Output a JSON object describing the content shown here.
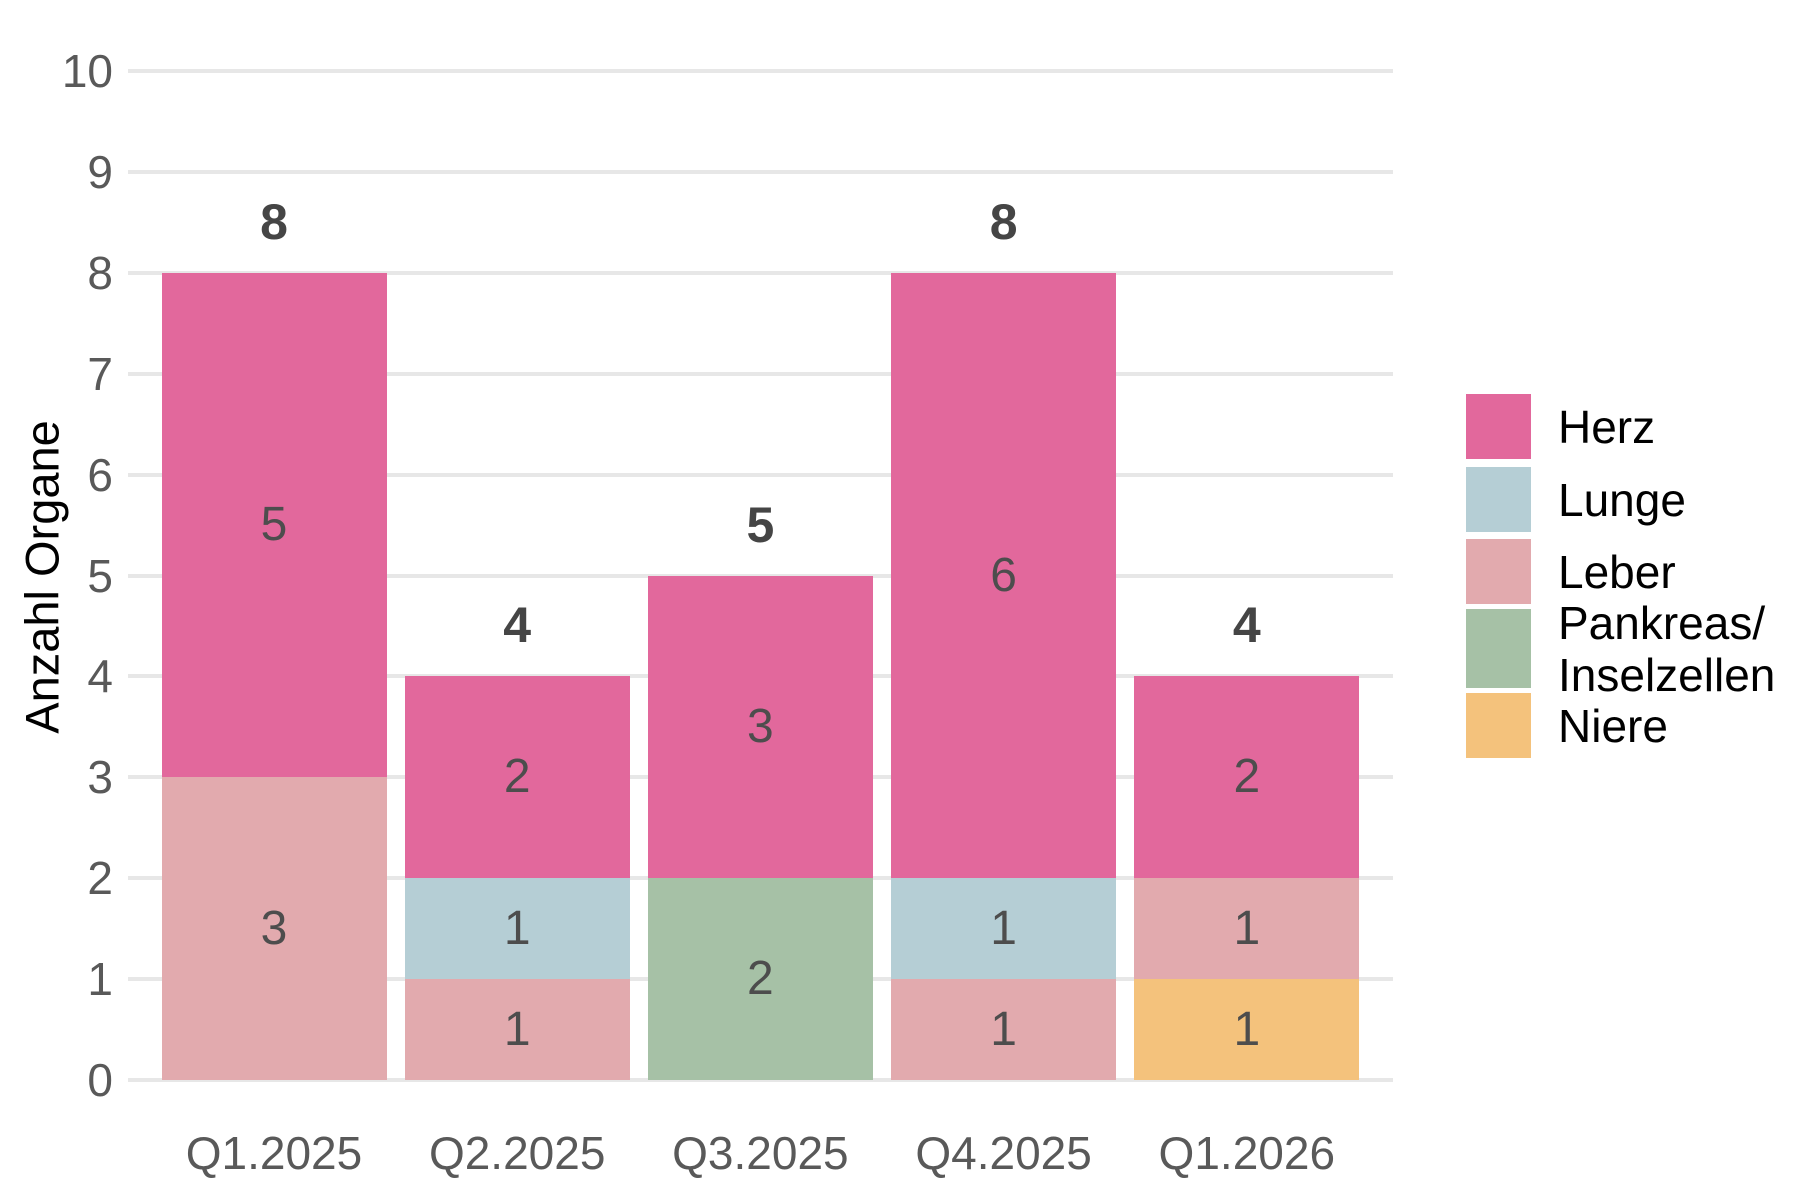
{
  "chart_data": {
    "type": "bar",
    "stacked": true,
    "title": "",
    "xlabel": "",
    "ylabel": "Anzahl Organe",
    "ylim": [
      0,
      10
    ],
    "yticks": [
      0,
      1,
      2,
      3,
      4,
      5,
      6,
      7,
      8,
      9,
      10
    ],
    "grid": true,
    "legend_position": "right",
    "categories": [
      "Q1.2025",
      "Q2.2025",
      "Q3.2025",
      "Q4.2025",
      "Q1.2026"
    ],
    "series": [
      {
        "name": "Herz",
        "color": "#e2689c",
        "values": [
          5,
          2,
          3,
          6,
          2
        ]
      },
      {
        "name": "Lunge",
        "color": "#b5ced5",
        "values": [
          0,
          1,
          0,
          1,
          0
        ]
      },
      {
        "name": "Leber",
        "color": "#e2aaae",
        "values": [
          3,
          1,
          0,
          1,
          1
        ]
      },
      {
        "name": "Pankreas/\nInselzellen",
        "color": "#a6c1a6",
        "values": [
          0,
          0,
          2,
          0,
          0
        ]
      },
      {
        "name": "Niere",
        "color": "#f4c27c",
        "values": [
          0,
          0,
          0,
          0,
          1
        ]
      }
    ],
    "totals": [
      8,
      4,
      5,
      8,
      4
    ]
  },
  "colors": {
    "background": "#ffffff",
    "gridline": "#e7e7e7",
    "tick_label": "#595959",
    "axis_title": "#000000",
    "segment_value_label": "#4d4d4d",
    "total_label": "#454545",
    "legend_text": "#000000"
  }
}
